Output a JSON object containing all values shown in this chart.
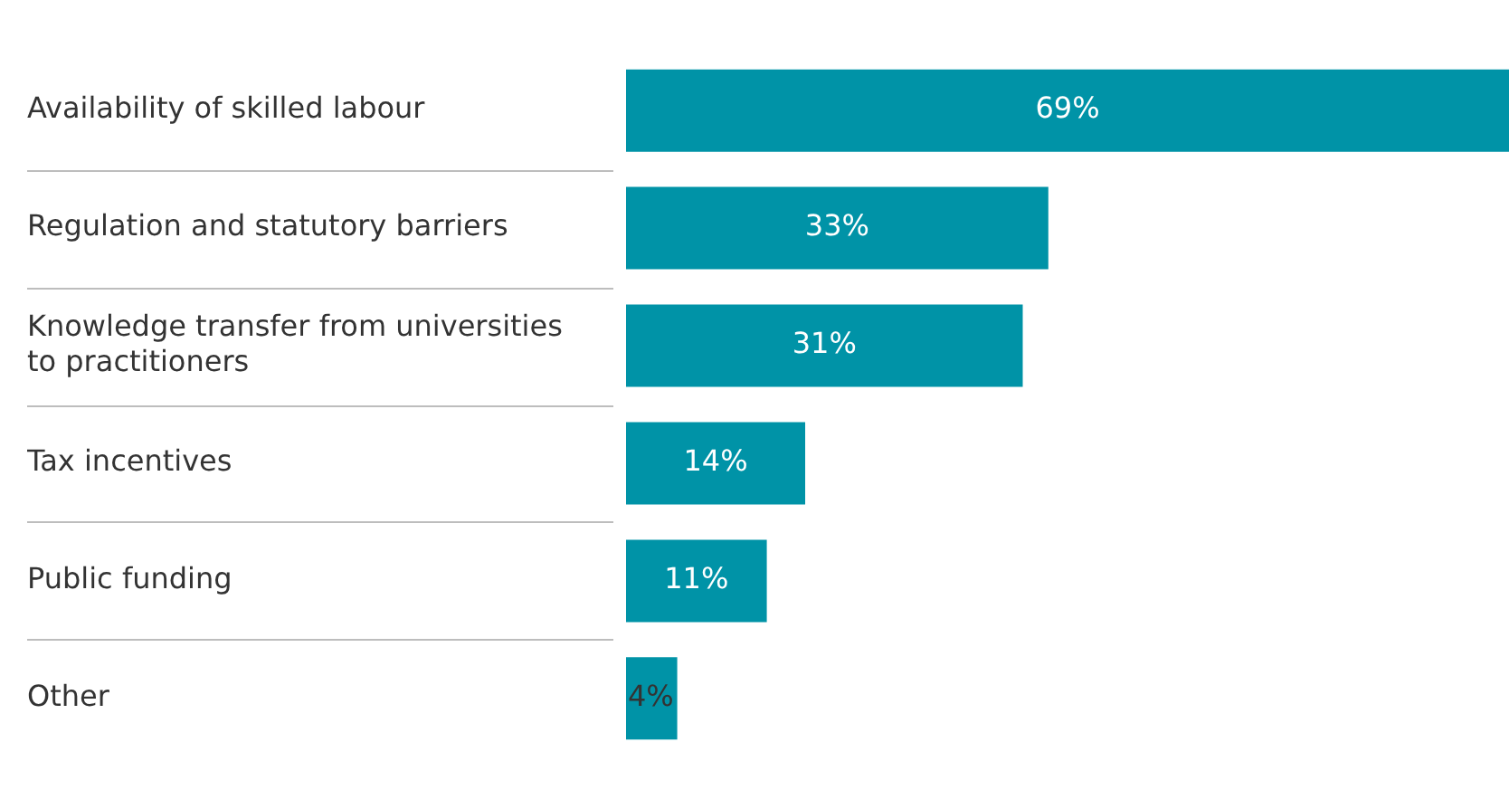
{
  "chart_data": {
    "type": "bar",
    "orientation": "horizontal",
    "categories": [
      "Availability of skilled labour",
      "Regulation and statutory barriers",
      "Knowledge transfer from universities to practitioners",
      "Tax incentives",
      "Public funding",
      "Other"
    ],
    "values": [
      69,
      33,
      31,
      14,
      11,
      4
    ],
    "value_labels": [
      "69%",
      "33%",
      "31%",
      "14%",
      "11%",
      "4%"
    ],
    "color": "#0093a7",
    "tick_labels": "y",
    "legend": false
  }
}
